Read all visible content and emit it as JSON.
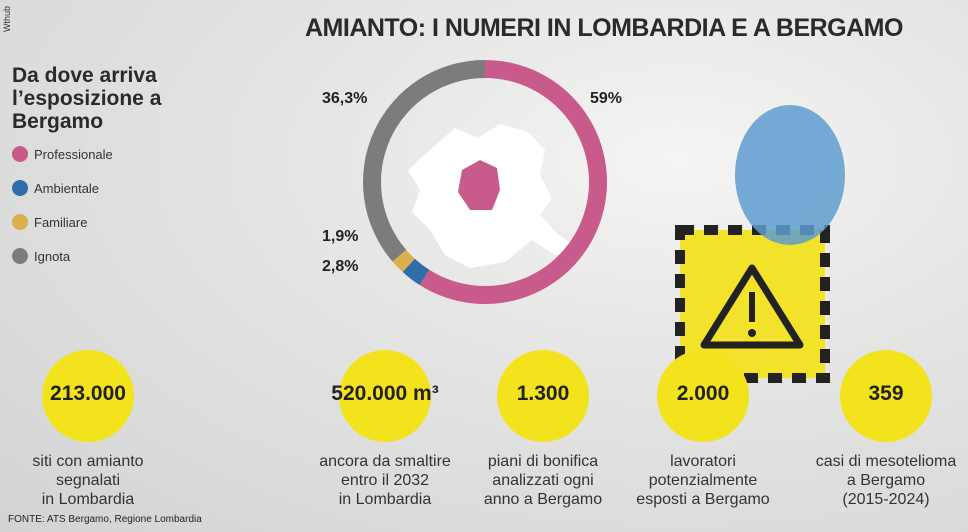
{
  "title": "AMIANTO: I NUMERI IN LOMBARDIA E A BERGAMO",
  "credit": "Wthub",
  "source": "FONTE: ATS Bergamo, Regione Lombardia",
  "chart_data": {
    "type": "pie",
    "title": "Da dove arriva l’esposizione a Bergamo",
    "categories": [
      "Professionale",
      "Ambientale",
      "Familiare",
      "Ignota"
    ],
    "values": [
      59,
      2.8,
      1.9,
      36.3
    ],
    "value_labels": [
      "59%",
      "2,8%",
      "1,9%",
      "36,3%"
    ],
    "colors": [
      "#c95b8c",
      "#2f6ea8",
      "#d9b04c",
      "#7b7c7e"
    ],
    "donut": true
  },
  "stats": [
    {
      "value": "213.000",
      "lines": [
        "siti con amianto",
        "segnalati",
        "in Lombardia"
      ]
    },
    {
      "value": "520.000 m³",
      "lines": [
        "ancora da smaltire",
        "entro il 2032",
        "in Lombardia"
      ]
    },
    {
      "value": "1.300",
      "lines": [
        "piani di bonifica",
        "analizzati ogni",
        "anno a Bergamo"
      ]
    },
    {
      "value": "2.000",
      "lines": [
        "lavoratori",
        "potenzialmente",
        "esposti a Bergamo"
      ]
    },
    {
      "value": "359",
      "lines": [
        "casi di mesotelioma",
        "a Bergamo",
        "(2015-2024)"
      ]
    }
  ]
}
